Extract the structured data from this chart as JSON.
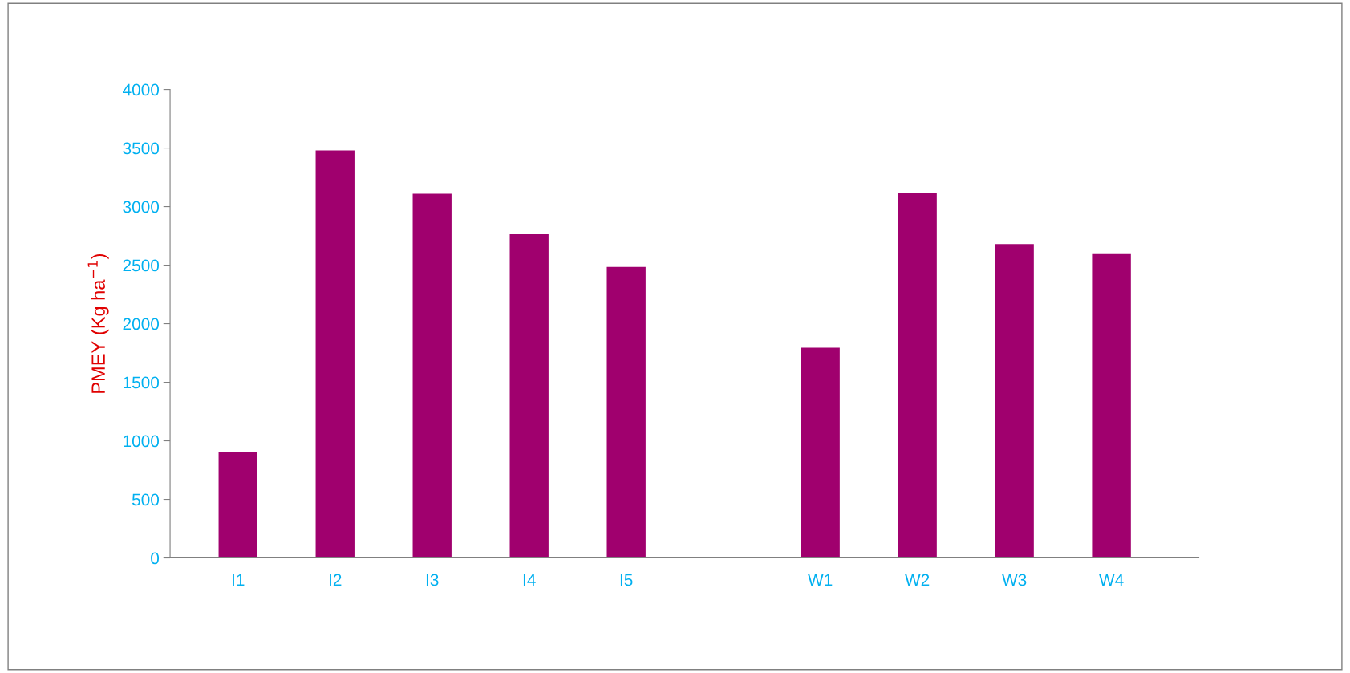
{
  "chart_data": {
    "type": "bar",
    "ylabel": "PMEY (Kg ha$^{−1}$)",
    "categories": [
      "I1",
      "I2",
      "I3",
      "I4",
      "I5",
      null,
      "W1",
      "W2",
      "W3",
      "W4"
    ],
    "values": [
      905,
      3480,
      3110,
      2765,
      2485,
      null,
      1795,
      3120,
      2680,
      2595
    ],
    "color": "#a0006e",
    "ylim": [
      0,
      4000
    ],
    "yticks": [
      0,
      500,
      1000,
      1500,
      2000,
      2500,
      3000,
      3500,
      4000
    ],
    "grid": false,
    "legend": false
  }
}
